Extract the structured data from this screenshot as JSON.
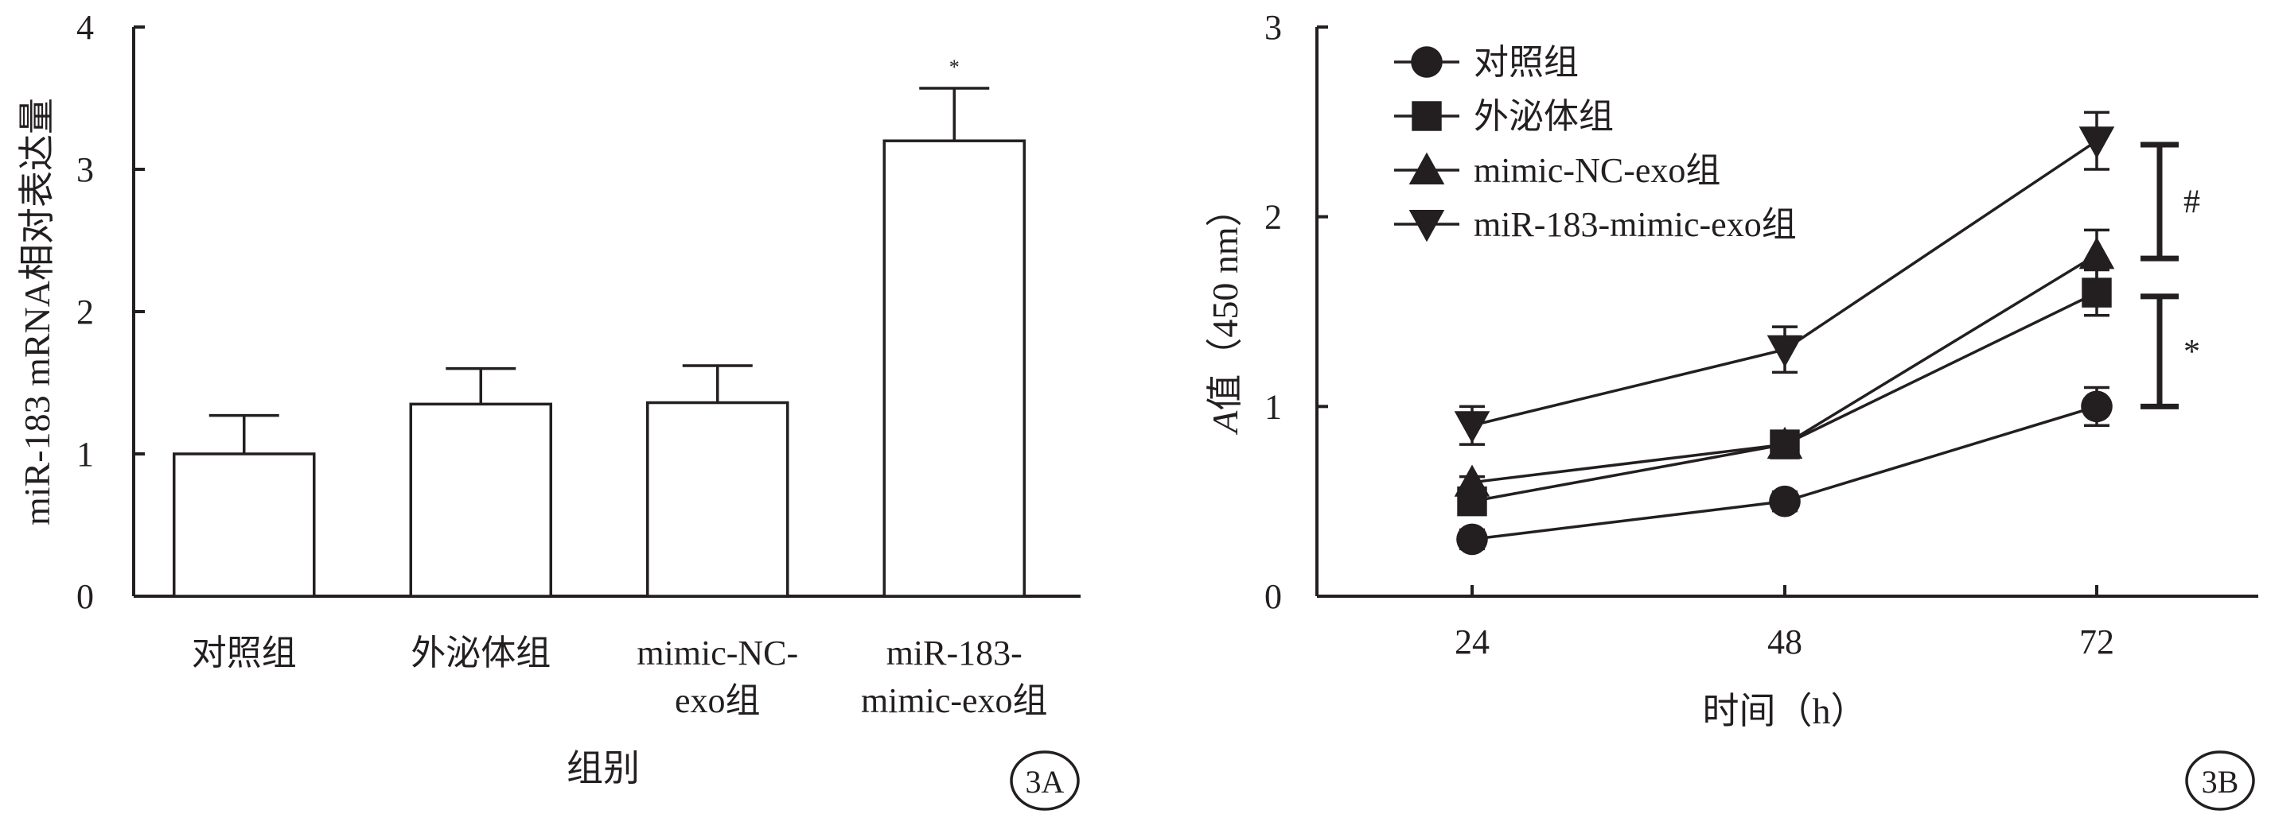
{
  "chart_data": [
    {
      "type": "bar",
      "panel_label": "3A",
      "xlabel": "组别",
      "ylabel": "miR-183 mRNA相对表达量",
      "ylim": [
        0,
        4
      ],
      "yticks": [
        "0",
        "1",
        "2",
        "3",
        "4"
      ],
      "categories": [
        [
          "对照组"
        ],
        [
          "外泌体组"
        ],
        [
          "mimic-NC-",
          "exo组"
        ],
        [
          "miR-183-",
          "mimic-exo组"
        ]
      ],
      "values": [
        1.0,
        1.35,
        1.36,
        3.2
      ],
      "errors": [
        0.27,
        0.25,
        0.26,
        0.37
      ],
      "annotations": [
        "",
        "",
        "",
        "*"
      ]
    },
    {
      "type": "line",
      "panel_label": "3B",
      "xlabel": "时间（h）",
      "ylabel_italic": "A",
      "ylabel": "值（450 nm）",
      "ylim": [
        0,
        3
      ],
      "yticks": [
        "0",
        "1",
        "2",
        "3"
      ],
      "x": [
        "24",
        "48",
        "72"
      ],
      "series": [
        {
          "name": "对照组",
          "marker": "circle",
          "values": [
            0.3,
            0.5,
            1.0
          ],
          "errors": [
            0.05,
            0.05,
            0.1
          ]
        },
        {
          "name": "外泌体组",
          "marker": "square",
          "values": [
            0.5,
            0.8,
            1.6
          ],
          "errors": [
            0.05,
            0.05,
            0.12
          ]
        },
        {
          "name": "mimic-NC-exo组",
          "marker": "triangle-up",
          "values": [
            0.6,
            0.8,
            1.8
          ],
          "errors": [
            0.03,
            0.04,
            0.13
          ]
        },
        {
          "name": "miR-183-mimic-exo组",
          "marker": "triangle-down",
          "values": [
            0.9,
            1.3,
            2.4
          ],
          "errors": [
            0.1,
            0.12,
            0.15
          ]
        }
      ],
      "significance": [
        {
          "symbol": "#",
          "from": 1.78,
          "to": 2.38
        },
        {
          "symbol": "*",
          "from": 1.0,
          "to": 1.58
        }
      ],
      "legend_position": "top-left"
    }
  ]
}
